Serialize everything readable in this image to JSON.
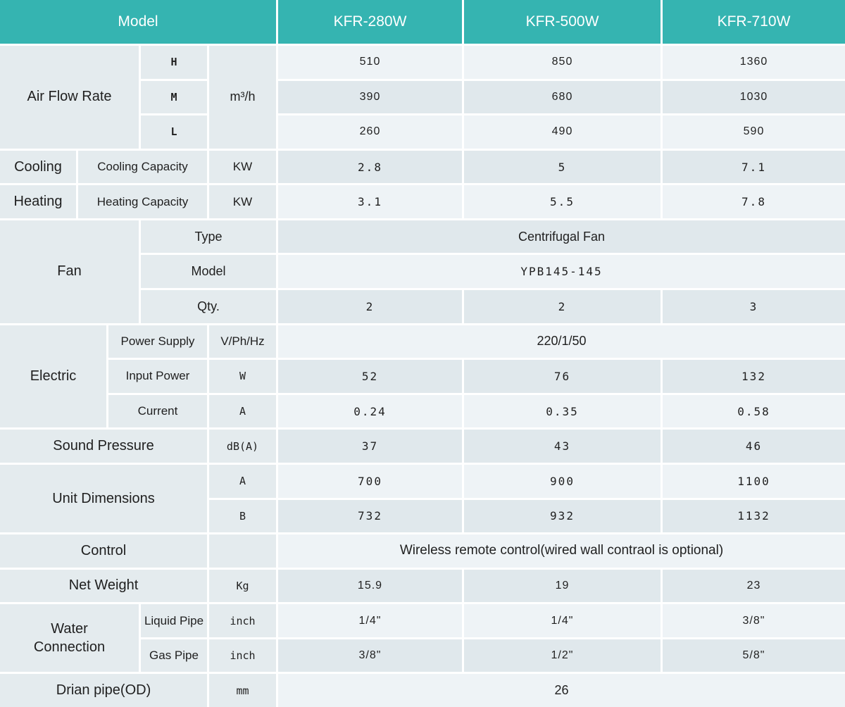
{
  "colors": {
    "header_bg": "#35b4b1",
    "header_text": "#ffffff",
    "left_cell_bg": "#e4ebee",
    "row_light_bg": "#eef3f6",
    "row_dark_bg": "#e0e8ec",
    "grid_line": "#ffffff",
    "text": "#1f1f1f"
  },
  "cells": [
    {
      "n": "header-model",
      "t": "Model",
      "r": 1,
      "c": 1,
      "cs": 5,
      "k": "head"
    },
    {
      "n": "header-kfr-280w",
      "t": "KFR-280W",
      "r": 1,
      "c": 6,
      "k": "head"
    },
    {
      "n": "header-kfr-500w",
      "t": "KFR-500W",
      "r": 1,
      "c": 7,
      "k": "head"
    },
    {
      "n": "header-kfr-710w",
      "t": "KFR-710W",
      "r": 1,
      "c": 8,
      "k": "head"
    },
    {
      "n": "section-air-flow-rate",
      "t": "Air Flow Rate",
      "r": 2,
      "c": 1,
      "cs": 3,
      "rs": 3,
      "k": "sec"
    },
    {
      "n": "sublabel-h",
      "t": "H",
      "r": 2,
      "c": 4,
      "k": "hml"
    },
    {
      "n": "unit-m3-h",
      "t": "m³/h",
      "r": 2,
      "c": 5,
      "rs": 3,
      "k": "sub18"
    },
    {
      "n": "value-airflow-h-kfr280w",
      "t": "510",
      "r": 2,
      "c": 6,
      "k": "vsans"
    },
    {
      "n": "value-airflow-h-kfr500w",
      "t": "850",
      "r": 2,
      "c": 7,
      "k": "vsans"
    },
    {
      "n": "value-airflow-h-kfr710w",
      "t": "1360",
      "r": 2,
      "c": 8,
      "k": "vsans"
    },
    {
      "n": "sublabel-m",
      "t": "M",
      "r": 3,
      "c": 4,
      "k": "hml"
    },
    {
      "n": "value-airflow-m-kfr280w",
      "t": "390",
      "r": 3,
      "c": 6,
      "k": "vsans"
    },
    {
      "n": "value-airflow-m-kfr500w",
      "t": "680",
      "r": 3,
      "c": 7,
      "k": "vsans"
    },
    {
      "n": "value-airflow-m-kfr710w",
      "t": "1030",
      "r": 3,
      "c": 8,
      "k": "vsans"
    },
    {
      "n": "sublabel-l",
      "t": "L",
      "r": 4,
      "c": 4,
      "k": "hml"
    },
    {
      "n": "value-airflow-l-kfr280w",
      "t": "260",
      "r": 4,
      "c": 6,
      "k": "vsans"
    },
    {
      "n": "value-airflow-l-kfr500w",
      "t": "490",
      "r": 4,
      "c": 7,
      "k": "vsans"
    },
    {
      "n": "value-airflow-l-kfr710w",
      "t": "590",
      "r": 4,
      "c": 8,
      "k": "vsans"
    },
    {
      "n": "section-cooling",
      "t": "Cooling",
      "r": 5,
      "c": 1,
      "k": "sec"
    },
    {
      "n": "sublabel-cooling-capacity",
      "t": "Cooling Capacity",
      "r": 5,
      "c": 2,
      "cs": 3,
      "k": "sub"
    },
    {
      "n": "unit-kw-cooling",
      "t": "KW",
      "r": 5,
      "c": 5,
      "k": "sub"
    },
    {
      "n": "value-cooling-kfr280w",
      "t": "2.8",
      "r": 5,
      "c": 6,
      "k": "vmono"
    },
    {
      "n": "value-cooling-kfr500w",
      "t": "5",
      "r": 5,
      "c": 7,
      "k": "vmono"
    },
    {
      "n": "value-cooling-kfr710w",
      "t": "7.1",
      "r": 5,
      "c": 8,
      "k": "vmono"
    },
    {
      "n": "section-heating",
      "t": "Heating",
      "r": 6,
      "c": 1,
      "k": "sec"
    },
    {
      "n": "sublabel-heating-capacity",
      "t": "Heating Capacity",
      "r": 6,
      "c": 2,
      "cs": 3,
      "k": "sub"
    },
    {
      "n": "unit-kw-heating",
      "t": "KW",
      "r": 6,
      "c": 5,
      "k": "sub"
    },
    {
      "n": "value-heating-kfr280w",
      "t": "3.1",
      "r": 6,
      "c": 6,
      "k": "vmono"
    },
    {
      "n": "value-heating-kfr500w",
      "t": "5.5",
      "r": 6,
      "c": 7,
      "k": "vmono"
    },
    {
      "n": "value-heating-kfr710w",
      "t": "7.8",
      "r": 6,
      "c": 8,
      "k": "vmono"
    },
    {
      "n": "section-fan",
      "t": "Fan",
      "r": 7,
      "c": 1,
      "cs": 3,
      "rs": 3,
      "k": "sec"
    },
    {
      "n": "sublabel-fan-type",
      "t": "Type",
      "r": 7,
      "c": 4,
      "cs": 2,
      "k": "sub18"
    },
    {
      "n": "value-fan-type",
      "t": "Centrifugal Fan",
      "r": 7,
      "c": 6,
      "cs": 3,
      "k": "vsans18"
    },
    {
      "n": "sublabel-fan-model",
      "t": "Model",
      "r": 8,
      "c": 4,
      "cs": 2,
      "k": "sub18"
    },
    {
      "n": "value-fan-model",
      "t": "YPB145-145",
      "r": 8,
      "c": 6,
      "cs": 3,
      "k": "vmono"
    },
    {
      "n": "sublabel-fan-qty",
      "t": "Qty.",
      "r": 9,
      "c": 4,
      "cs": 2,
      "k": "sub18"
    },
    {
      "n": "value-fan-qty-kfr280w",
      "t": "2",
      "r": 9,
      "c": 6,
      "k": "vmono"
    },
    {
      "n": "value-fan-qty-kfr500w",
      "t": "2",
      "r": 9,
      "c": 7,
      "k": "vmono"
    },
    {
      "n": "value-fan-qty-kfr710w",
      "t": "3",
      "r": 9,
      "c": 8,
      "k": "vmono"
    },
    {
      "n": "section-electric",
      "t": "Electric",
      "r": 10,
      "c": 1,
      "cs": 2,
      "rs": 3,
      "k": "sec"
    },
    {
      "n": "sublabel-power-supply",
      "t": "Power Supply",
      "r": 10,
      "c": 3,
      "cs": 2,
      "k": "sub"
    },
    {
      "n": "unit-v-ph-hz",
      "t": "V/Ph/Hz",
      "r": 10,
      "c": 5,
      "k": "sub"
    },
    {
      "n": "value-power-supply",
      "t": "220/1/50",
      "r": 10,
      "c": 6,
      "cs": 3,
      "k": "vsans18"
    },
    {
      "n": "sublabel-input-power",
      "t": "Input Power",
      "r": 11,
      "c": 3,
      "cs": 2,
      "k": "sub"
    },
    {
      "n": "unit-w",
      "t": "W",
      "r": 11,
      "c": 5,
      "k": "unit"
    },
    {
      "n": "value-input-power-kfr280w",
      "t": "52",
      "r": 11,
      "c": 6,
      "k": "vmono"
    },
    {
      "n": "value-input-power-kfr500w",
      "t": "76",
      "r": 11,
      "c": 7,
      "k": "vmono"
    },
    {
      "n": "value-input-power-kfr710w",
      "t": "132",
      "r": 11,
      "c": 8,
      "k": "vmono"
    },
    {
      "n": "sublabel-current",
      "t": "Current",
      "r": 12,
      "c": 3,
      "cs": 2,
      "k": "sub"
    },
    {
      "n": "unit-a",
      "t": "A",
      "r": 12,
      "c": 5,
      "k": "unit"
    },
    {
      "n": "value-current-kfr280w",
      "t": "0.24",
      "r": 12,
      "c": 6,
      "k": "vmono"
    },
    {
      "n": "value-current-kfr500w",
      "t": "0.35",
      "r": 12,
      "c": 7,
      "k": "vmono"
    },
    {
      "n": "value-current-kfr710w",
      "t": "0.58",
      "r": 12,
      "c": 8,
      "k": "vmono"
    },
    {
      "n": "section-sound-pressure",
      "t": "Sound Pressure",
      "r": 13,
      "c": 1,
      "cs": 4,
      "k": "sec"
    },
    {
      "n": "unit-db-a",
      "t": "dB(A)",
      "r": 13,
      "c": 5,
      "k": "unit"
    },
    {
      "n": "value-sound-kfr280w",
      "t": "37",
      "r": 13,
      "c": 6,
      "k": "vmono"
    },
    {
      "n": "value-sound-kfr500w",
      "t": "43",
      "r": 13,
      "c": 7,
      "k": "vmono"
    },
    {
      "n": "value-sound-kfr710w",
      "t": "46",
      "r": 13,
      "c": 8,
      "k": "vmono"
    },
    {
      "n": "section-unit-dimensions",
      "t": "Unit Dimensions",
      "r": 14,
      "c": 1,
      "cs": 4,
      "rs": 2,
      "k": "sec"
    },
    {
      "n": "sublabel-dim-a",
      "t": "A",
      "r": 14,
      "c": 5,
      "k": "unit"
    },
    {
      "n": "value-dim-a-kfr280w",
      "t": "700",
      "r": 14,
      "c": 6,
      "k": "vmono"
    },
    {
      "n": "value-dim-a-kfr500w",
      "t": "900",
      "r": 14,
      "c": 7,
      "k": "vmono"
    },
    {
      "n": "value-dim-a-kfr710w",
      "t": "1100",
      "r": 14,
      "c": 8,
      "k": "vmono"
    },
    {
      "n": "sublabel-dim-b",
      "t": "B",
      "r": 15,
      "c": 5,
      "k": "unit"
    },
    {
      "n": "value-dim-b-kfr280w",
      "t": "732",
      "r": 15,
      "c": 6,
      "k": "vmono"
    },
    {
      "n": "value-dim-b-kfr500w",
      "t": "932",
      "r": 15,
      "c": 7,
      "k": "vmono"
    },
    {
      "n": "value-dim-b-kfr710w",
      "t": "1132",
      "r": 15,
      "c": 8,
      "k": "vmono"
    },
    {
      "n": "section-control",
      "t": "Control",
      "r": 16,
      "c": 1,
      "cs": 4,
      "k": "sec"
    },
    {
      "n": "cell-control-unit-empty",
      "t": "",
      "r": 16,
      "c": 5,
      "k": "sub"
    },
    {
      "n": "value-control",
      "t": "Wireless remote control(wired wall contraol is optional)",
      "r": 16,
      "c": 6,
      "cs": 3,
      "k": "vsans19"
    },
    {
      "n": "section-net-weight",
      "t": "Net Weight",
      "r": 17,
      "c": 1,
      "cs": 4,
      "k": "sec"
    },
    {
      "n": "unit-kg",
      "t": "Kg",
      "r": 17,
      "c": 5,
      "k": "unit"
    },
    {
      "n": "value-weight-kfr280w",
      "t": "15.9",
      "r": 17,
      "c": 6,
      "k": "vsans"
    },
    {
      "n": "value-weight-kfr500w",
      "t": "19",
      "r": 17,
      "c": 7,
      "k": "vsans"
    },
    {
      "n": "value-weight-kfr710w",
      "t": "23",
      "r": 17,
      "c": 8,
      "k": "vsans"
    },
    {
      "n": "section-water-connection",
      "t": "Water Connection",
      "r": 18,
      "c": 1,
      "cs": 3,
      "rs": 2,
      "k": "sec"
    },
    {
      "n": "sublabel-liquid-pipe",
      "t": "Liquid Pipe",
      "r": 18,
      "c": 4,
      "k": "sub"
    },
    {
      "n": "unit-inch-liquid",
      "t": "inch",
      "r": 18,
      "c": 5,
      "k": "unit"
    },
    {
      "n": "value-liquid-kfr280w",
      "t": "1/4\"",
      "r": 18,
      "c": 6,
      "k": "vsans"
    },
    {
      "n": "value-liquid-kfr500w",
      "t": "1/4\"",
      "r": 18,
      "c": 7,
      "k": "vsans"
    },
    {
      "n": "value-liquid-kfr710w",
      "t": "3/8\"",
      "r": 18,
      "c": 8,
      "k": "vsans"
    },
    {
      "n": "sublabel-gas-pipe",
      "t": "Gas Pipe",
      "r": 19,
      "c": 4,
      "k": "sub"
    },
    {
      "n": "unit-inch-gas",
      "t": "inch",
      "r": 19,
      "c": 5,
      "k": "unit"
    },
    {
      "n": "value-gas-kfr280w",
      "t": "3/8\"",
      "r": 19,
      "c": 6,
      "k": "vsans"
    },
    {
      "n": "value-gas-kfr500w",
      "t": "1/2\"",
      "r": 19,
      "c": 7,
      "k": "vsans"
    },
    {
      "n": "value-gas-kfr710w",
      "t": "5/8\"",
      "r": 19,
      "c": 8,
      "k": "vsans"
    },
    {
      "n": "section-drain-pipe",
      "t": "Drian pipe(OD)",
      "r": 20,
      "c": 1,
      "cs": 4,
      "k": "sec"
    },
    {
      "n": "unit-mm",
      "t": "mm",
      "r": 20,
      "c": 5,
      "k": "unit"
    },
    {
      "n": "value-drain-pipe",
      "t": "26",
      "r": 20,
      "c": 6,
      "cs": 3,
      "k": "vsans18"
    }
  ]
}
